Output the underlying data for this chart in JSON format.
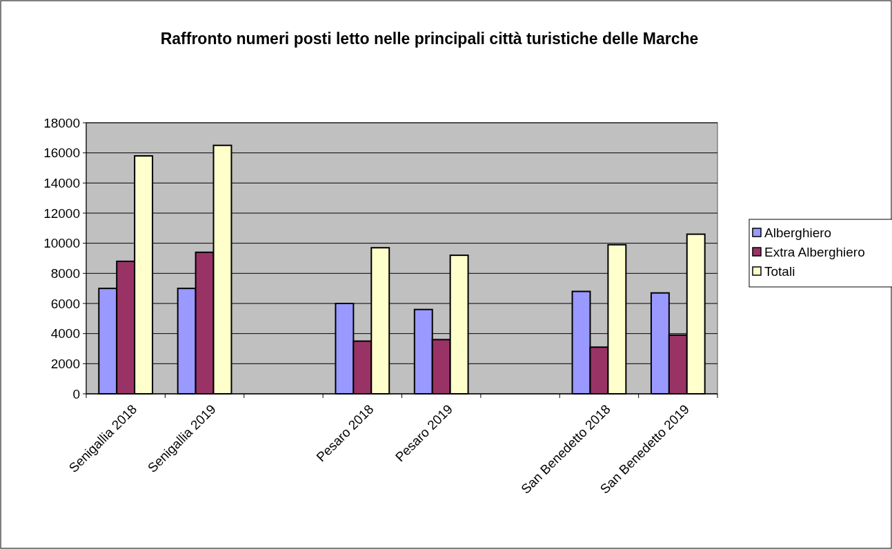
{
  "chart_data": {
    "type": "bar",
    "title": "Raffronto numeri posti letto nelle principali città turistiche delle Marche",
    "categories": [
      "Senigallia 2018",
      "Senigallia 2019",
      null,
      "Pesaro 2018",
      "Pesaro 2019",
      null,
      "San Benedetto 2018",
      "San Benedetto 2019"
    ],
    "series": [
      {
        "name": "Alberghiero",
        "color": "#9999ff",
        "values": [
          7000,
          7000,
          null,
          6000,
          5600,
          null,
          6800,
          6700
        ]
      },
      {
        "name": "Extra Alberghiero",
        "color": "#993366",
        "values": [
          8800,
          9400,
          null,
          3500,
          3600,
          null,
          3100,
          3900
        ]
      },
      {
        "name": "Totali",
        "color": "#ffffcc",
        "values": [
          15800,
          16500,
          null,
          9700,
          9200,
          null,
          9900,
          10600
        ]
      }
    ],
    "ylim": [
      0,
      18000
    ],
    "yticks": [
      0,
      2000,
      4000,
      6000,
      8000,
      10000,
      12000,
      14000,
      16000,
      18000
    ],
    "grid": "y",
    "legend": "right"
  }
}
